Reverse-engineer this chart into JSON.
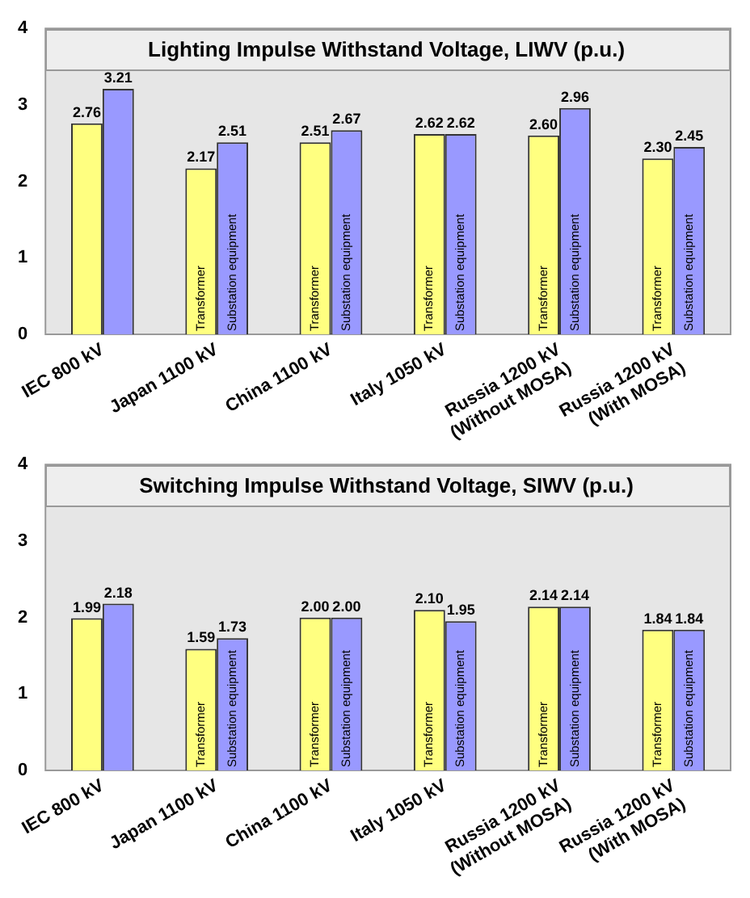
{
  "chart_data": [
    {
      "type": "bar",
      "title": "Lighting Impulse Withstand Voltage, LIWV (p.u.)",
      "categories": [
        "IEC 800 kV",
        "Japan 1100 kV",
        "China 1100 kV",
        "Italy 1050 kV",
        "Russia 1200 kV\n(Without MOSA)",
        "Russia 1200 kV\n(With MOSA)"
      ],
      "series": [
        {
          "name": "Transformer",
          "color": "#ffff80",
          "values": [
            2.76,
            2.17,
            2.51,
            2.62,
            2.6,
            2.3
          ],
          "value_labels": [
            "2.76",
            "2.17",
            "2.51",
            "2.62",
            "2.60",
            "2.30"
          ]
        },
        {
          "name": "Substation equipment",
          "color": "#9999ff",
          "values": [
            3.21,
            2.51,
            2.67,
            2.62,
            2.96,
            2.45
          ],
          "value_labels": [
            "3.21",
            "2.51",
            "2.67",
            "2.62",
            "2.96",
            "2.45"
          ]
        }
      ],
      "ylim": [
        0,
        4
      ],
      "yticks": [
        0,
        1,
        2,
        3,
        4
      ],
      "grid": false,
      "legend": false
    },
    {
      "type": "bar",
      "title": "Switching Impulse Withstand Voltage, SIWV (p.u.)",
      "categories": [
        "IEC 800 kV",
        "Japan 1100 kV",
        "China 1100 kV",
        "Italy 1050 kV",
        "Russia 1200 kV\n(Without MOSA)",
        "Russia 1200 kV\n(With MOSA)"
      ],
      "series": [
        {
          "name": "Transformer",
          "color": "#ffff80",
          "values": [
            1.99,
            1.59,
            2.0,
            2.1,
            2.14,
            1.84
          ],
          "value_labels": [
            "1.99",
            "1.59",
            "2.00",
            "2.10",
            "2.14",
            "1.84"
          ]
        },
        {
          "name": "Substation equipment",
          "color": "#9999ff",
          "values": [
            2.18,
            1.73,
            2.0,
            1.95,
            2.14,
            1.84
          ],
          "value_labels": [
            "2.18",
            "1.73",
            "2.00",
            "1.95",
            "2.14",
            "1.84"
          ]
        }
      ],
      "ylim": [
        0,
        4
      ],
      "yticks": [
        0,
        1,
        2,
        3,
        4
      ],
      "grid": false,
      "legend": false
    }
  ]
}
